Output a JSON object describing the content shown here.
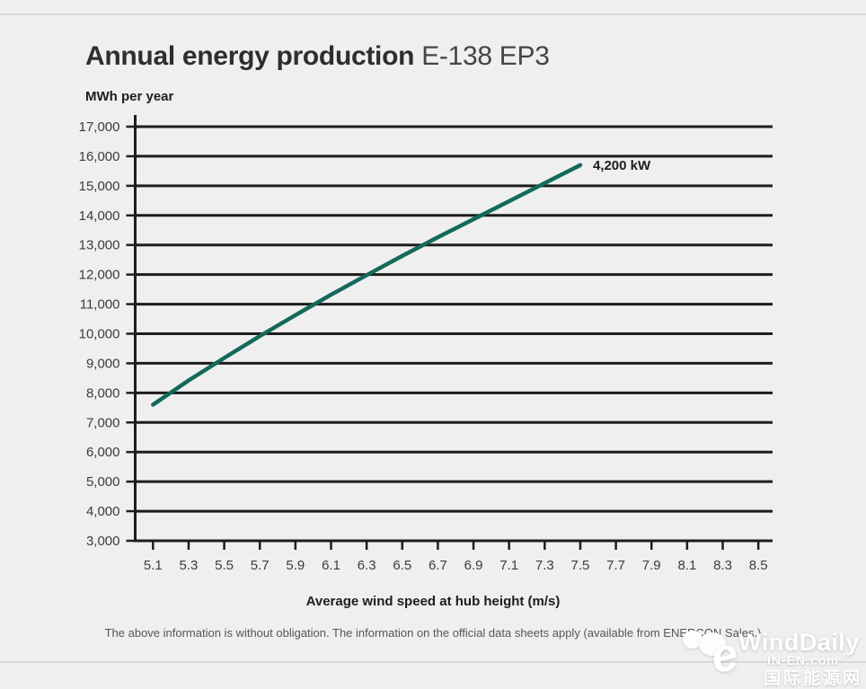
{
  "page": {
    "title_main": "Annual energy production",
    "title_model": "E-138 EP3",
    "footer": "The above information is without obligation. The information on the official data sheets apply (available from ENERCON Sales.)"
  },
  "chart_data": {
    "type": "line",
    "title": "Annual energy production E-138 EP3",
    "ylabel": "MWh per year",
    "xlabel": "Average wind speed at hub height (m/s)",
    "ylim": [
      3000,
      17000
    ],
    "xlim": [
      5.0,
      8.58
    ],
    "grid": true,
    "y_tick_values": [
      3000,
      4000,
      5000,
      6000,
      7000,
      8000,
      9000,
      10000,
      11000,
      12000,
      13000,
      14000,
      15000,
      16000,
      17000
    ],
    "y_tick_labels": [
      "3,000",
      "4,000",
      "5,000",
      "6,000",
      "7,000",
      "8,000",
      "9,000",
      "10,000",
      "11,000",
      "12,000",
      "13,000",
      "14,000",
      "15,000",
      "16,000",
      "17,000"
    ],
    "x_tick_values": [
      5.1,
      5.3,
      5.5,
      5.7,
      5.9,
      6.1,
      6.3,
      6.5,
      6.7,
      6.9,
      7.1,
      7.3,
      7.5,
      7.7,
      7.9,
      8.1,
      8.3,
      8.5
    ],
    "x_tick_labels": [
      "5.1",
      "5.3",
      "5.5",
      "5.7",
      "5.9",
      "6.1",
      "6.3",
      "6.5",
      "6.7",
      "6.9",
      "7.1",
      "7.3",
      "7.5",
      "7.7",
      "7.9",
      "8.1",
      "8.3",
      "8.5"
    ],
    "series": [
      {
        "name": "4,200 kW",
        "x": [
          5.1,
          5.3,
          5.5,
          5.7,
          5.9,
          6.1,
          6.3,
          6.5,
          6.7,
          6.9,
          7.1,
          7.3,
          7.5
        ],
        "values": [
          7600,
          8420,
          9180,
          9920,
          10630,
          11320,
          11980,
          12630,
          13260,
          13870,
          14480,
          15090,
          15700
        ],
        "color": "#14695a"
      }
    ],
    "annotation": "4,200 kW",
    "colors": {
      "grid": "#1d1d1b",
      "tick_label": "#3c3c3b",
      "annotation": "#1d1d1b"
    }
  },
  "watermark": {
    "brand": "WindDaily",
    "logo_e": "e",
    "site": "IN-EN.com",
    "site_cn": "国际能源网"
  }
}
